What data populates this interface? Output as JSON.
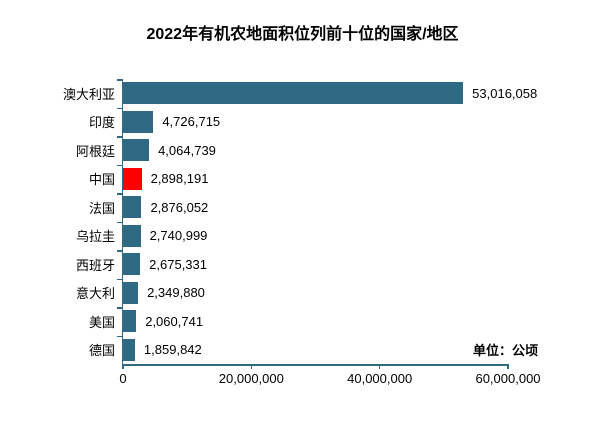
{
  "title": "2022年有机农地面积位列前十位的国家/地区",
  "unit_label": "单位：公顷",
  "colors": {
    "bar": "#2F6A85",
    "highlight": "#FF0000",
    "axis": "#2F6A85",
    "text": "#000000",
    "background": "#FFFFFF"
  },
  "chart_data": {
    "type": "bar",
    "orientation": "horizontal",
    "title": "2022年有机农地面积位列前十位的国家/地区",
    "unit": "公顷",
    "categories": [
      "澳大利亚",
      "印度",
      "阿根廷",
      "中国",
      "法国",
      "乌拉圭",
      "西班牙",
      "意大利",
      "美国",
      "德国"
    ],
    "values": [
      53016058,
      4726715,
      4064739,
      2898191,
      2876052,
      2740999,
      2675331,
      2349880,
      2060741,
      1859842
    ],
    "value_labels": [
      "53,016,058",
      "4,726,715",
      "4,064,739",
      "2,898,191",
      "2,876,052",
      "2,740,999",
      "2,675,331",
      "2,349,880",
      "2,060,741",
      "1,859,842"
    ],
    "highlight_category": "中国",
    "xlim": [
      0,
      60000000
    ],
    "x_ticks": [
      0,
      20000000,
      40000000,
      60000000
    ],
    "x_tick_labels": [
      "0",
      "20,000,000",
      "40,000,000",
      "60,000,000"
    ],
    "grid": false,
    "legend": false
  }
}
